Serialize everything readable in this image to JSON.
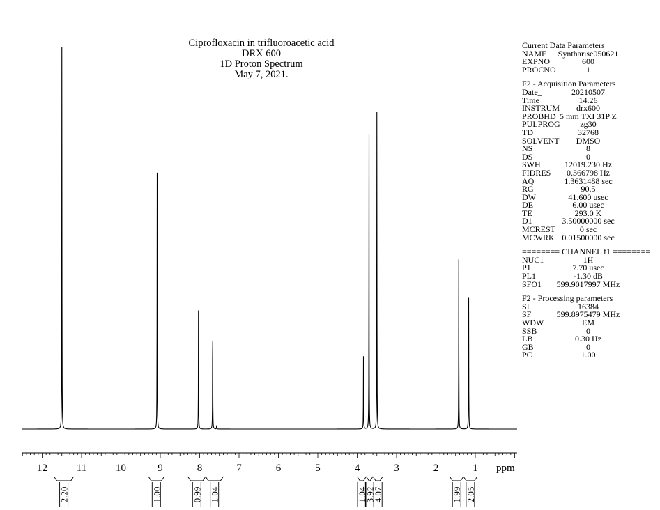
{
  "title": {
    "lines": [
      "Ciprofloxacin in trifluoroacetic acid",
      "DRX 600",
      "1D Proton Spectrum",
      "May 7, 2021."
    ]
  },
  "parameters": {
    "groups": [
      {
        "heading": "Current Data Parameters",
        "rows": [
          {
            "key": "NAME",
            "value": "Syntharise050621"
          },
          {
            "key": "EXPNO",
            "value": "600"
          },
          {
            "key": "PROCNO",
            "value": "1"
          }
        ]
      },
      {
        "heading": "F2 - Acquisition Parameters",
        "rows": [
          {
            "key": "Date_",
            "value": "20210507"
          },
          {
            "key": "Time",
            "value": "14.26"
          },
          {
            "key": "INSTRUM",
            "value": "drx600"
          },
          {
            "key": "PROBHD",
            "value": "5 mm TXI 31P Z"
          },
          {
            "key": "PULPROG",
            "value": "zg30"
          },
          {
            "key": "TD",
            "value": "32768"
          },
          {
            "key": "SOLVENT",
            "value": "DMSO"
          },
          {
            "key": "NS",
            "value": "8"
          },
          {
            "key": "DS",
            "value": "0"
          },
          {
            "key": "SWH",
            "value": "12019.230 Hz"
          },
          {
            "key": "FIDRES",
            "value": "0.366798 Hz"
          },
          {
            "key": "AQ",
            "value": "1.3631488 sec"
          },
          {
            "key": "RG",
            "value": "90.5"
          },
          {
            "key": "DW",
            "value": "41.600 usec"
          },
          {
            "key": "DE",
            "value": "6.00 usec"
          },
          {
            "key": "TE",
            "value": "293.0 K"
          },
          {
            "key": "D1",
            "value": "3.50000000 sec"
          },
          {
            "key": "MCREST",
            "value": "0 sec"
          },
          {
            "key": "MCWRK",
            "value": "0.01500000 sec"
          }
        ]
      },
      {
        "heading": "======== CHANNEL f1 ========",
        "rows": [
          {
            "key": "NUC1",
            "value": "1H"
          },
          {
            "key": "P1",
            "value": "7.70 usec"
          },
          {
            "key": "PL1",
            "value": "-1.30 dB"
          },
          {
            "key": "SFO1",
            "value": "599.9017997 MHz"
          }
        ]
      },
      {
        "heading": "F2 - Processing parameters",
        "rows": [
          {
            "key": "SI",
            "value": "16384"
          },
          {
            "key": "SF",
            "value": "599.8975479 MHz"
          },
          {
            "key": "WDW",
            "value": "EM"
          },
          {
            "key": "SSB",
            "value": "0"
          },
          {
            "key": "LB",
            "value": "0.30 Hz"
          },
          {
            "key": "GB",
            "value": "0"
          },
          {
            "key": "PC",
            "value": "1.00"
          }
        ]
      }
    ]
  },
  "chart_data": {
    "type": "line",
    "xlabel": "ppm",
    "xlim": [
      12.5,
      0.0
    ],
    "reversed_x": true,
    "x_ticks": [
      12,
      11,
      10,
      9,
      8,
      7,
      6,
      5,
      4,
      3,
      2,
      1
    ],
    "peaks": [
      {
        "ppm": 11.5,
        "intensity": 1.0
      },
      {
        "ppm": 9.08,
        "intensity": 0.68
      },
      {
        "ppm": 8.03,
        "intensity": 0.34
      },
      {
        "ppm": 7.67,
        "intensity": 0.31
      },
      {
        "ppm": 7.57,
        "intensity": 0.01
      },
      {
        "ppm": 3.84,
        "intensity": 0.2
      },
      {
        "ppm": 3.7,
        "intensity": 0.83
      },
      {
        "ppm": 3.5,
        "intensity": 0.83
      },
      {
        "ppm": 1.42,
        "intensity": 0.45
      },
      {
        "ppm": 1.17,
        "intensity": 0.46
      }
    ],
    "integrals": [
      {
        "from": 11.7,
        "to": 11.2,
        "value": "2.20"
      },
      {
        "from": 9.3,
        "to": 8.9,
        "value": "1.00"
      },
      {
        "from": 8.3,
        "to": 7.85,
        "value": "0.99"
      },
      {
        "from": 7.85,
        "to": 7.4,
        "value": "1.04"
      },
      {
        "from": 4.0,
        "to": 3.77,
        "value": "1.04"
      },
      {
        "from": 3.77,
        "to": 3.6,
        "value": "3.92"
      },
      {
        "from": 3.6,
        "to": 3.35,
        "value": "4.07"
      },
      {
        "from": 1.65,
        "to": 1.3,
        "value": "1.99"
      },
      {
        "from": 1.3,
        "to": 0.95,
        "value": "2.05"
      }
    ]
  }
}
